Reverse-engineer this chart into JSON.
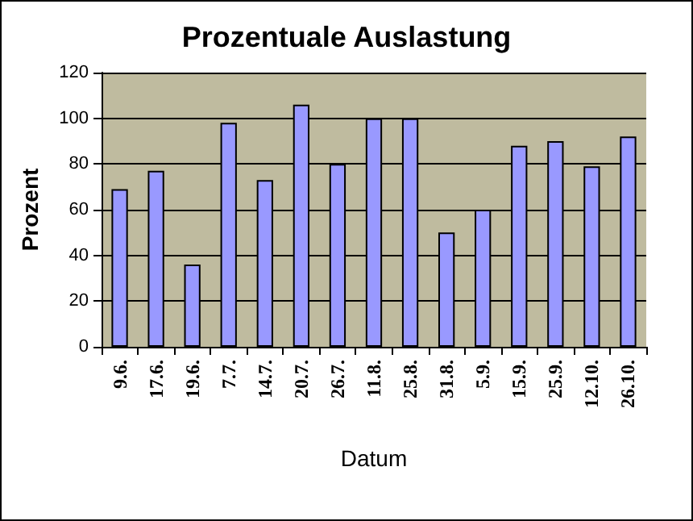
{
  "chart_data": {
    "type": "bar",
    "title": "Prozentuale Auslastung",
    "xlabel": "Datum",
    "ylabel": "Prozent",
    "categories": [
      "9.6.",
      "17.6.",
      "19.6.",
      "7.7.",
      "14.7.",
      "20.7.",
      "26.7.",
      "11.8.",
      "25.8.",
      "31.8.",
      "5.9.",
      "15.9.",
      "25.9.",
      "12.10.",
      "26.10."
    ],
    "values": [
      69,
      77,
      36,
      98,
      73,
      106,
      80,
      100,
      100,
      50,
      60,
      88,
      90,
      79,
      92
    ],
    "color": "#9999ff",
    "ylim": [
      0,
      120
    ],
    "yticks": [
      0,
      20,
      40,
      60,
      80,
      100,
      120
    ],
    "grid": "y"
  }
}
